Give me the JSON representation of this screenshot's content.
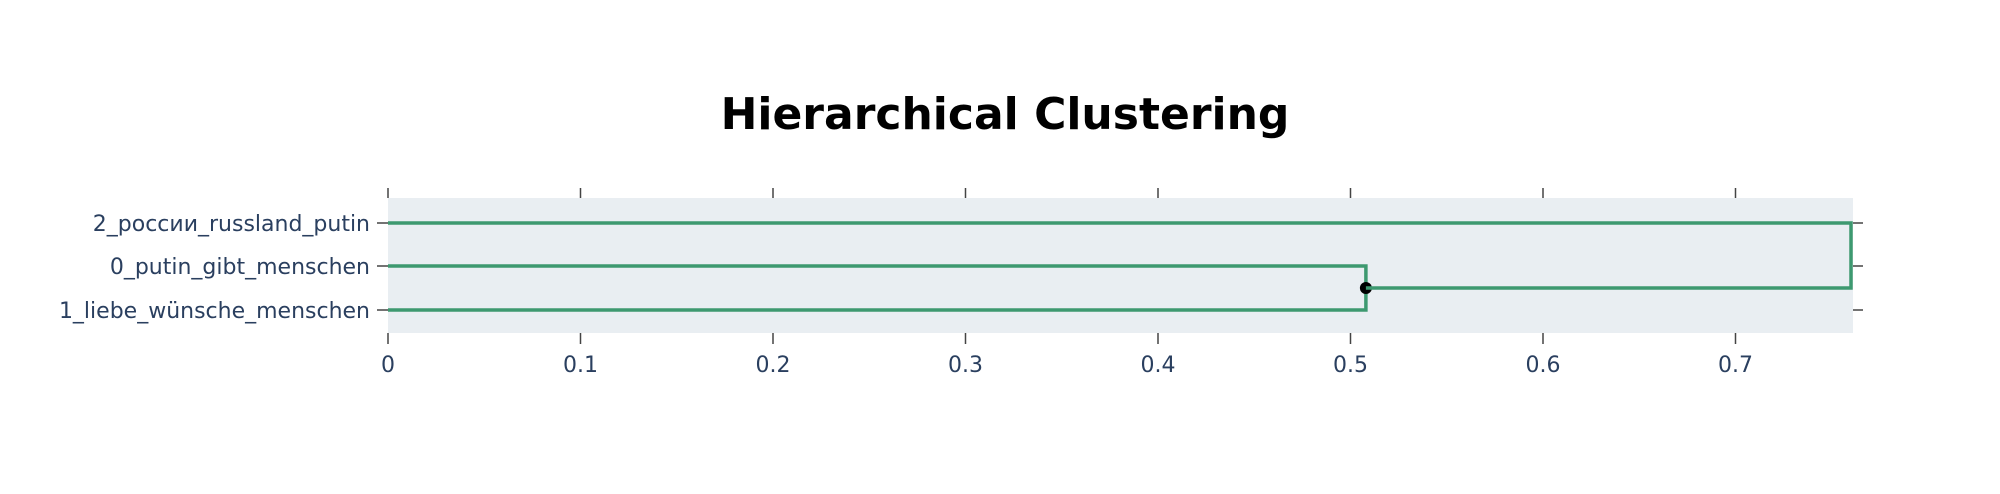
{
  "chart_data": {
    "type": "dendrogram",
    "title": "Hierarchical Clustering",
    "orientation": "horizontal",
    "leaves": [
      "2_россии_russland_putin",
      "0_putin_gibt_menschen",
      "1_liebe_wünsche_menschen"
    ],
    "merges": [
      {
        "children": [
          "0_putin_gibt_menschen",
          "1_liebe_wünsche_menschen"
        ],
        "distance": 0.508,
        "marked": true
      },
      {
        "children": [
          "2_россии_russland_putin",
          "cluster_0_1"
        ],
        "distance": 0.76,
        "marked": false
      }
    ],
    "x_ticks": [
      0,
      0.1,
      0.2,
      0.3,
      0.4,
      0.5,
      0.6,
      0.7
    ],
    "x_tick_labels": [
      "0",
      "0.1",
      "0.2",
      "0.3",
      "0.4",
      "0.5",
      "0.6",
      "0.7"
    ],
    "xlim": [
      0,
      0.762
    ],
    "xlabel": "",
    "ylabel": "",
    "grid": false,
    "colors": {
      "link": "#3d9970",
      "plot_background": "#e9eef2",
      "marker": "#000000",
      "tick_text": "#2a3f5f",
      "title_text": "#000000"
    }
  }
}
